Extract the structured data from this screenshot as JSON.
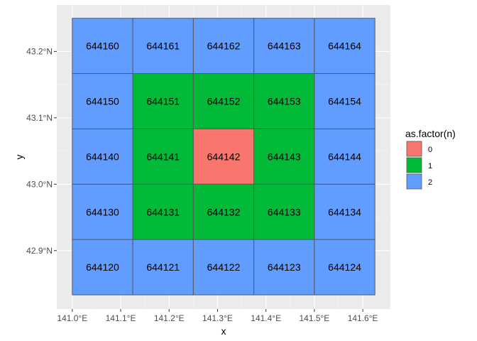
{
  "chart_data": {
    "type": "heatmap",
    "title": "",
    "xlabel": "x",
    "ylabel": "y",
    "xlim": [
      140.968,
      141.657
    ],
    "ylim": [
      42.812,
      43.27
    ],
    "grid": true,
    "x_ticks": [
      {
        "v": 141.0,
        "label": "141.0°E"
      },
      {
        "v": 141.1,
        "label": "141.1°E"
      },
      {
        "v": 141.2,
        "label": "141.2°E"
      },
      {
        "v": 141.3,
        "label": "141.3°E"
      },
      {
        "v": 141.4,
        "label": "141.4°E"
      },
      {
        "v": 141.5,
        "label": "141.5°E"
      },
      {
        "v": 141.6,
        "label": "141.6°E"
      }
    ],
    "y_ticks": [
      {
        "v": 42.9,
        "label": "42.9°N"
      },
      {
        "v": 43.0,
        "label": "43.0°N"
      },
      {
        "v": 43.1,
        "label": "43.1°N"
      },
      {
        "v": 43.2,
        "label": "43.2°N"
      }
    ],
    "tile_size": {
      "lon": 0.125,
      "lat": 0.08333
    },
    "tiles": [
      {
        "lon": 141.0625,
        "lat": 43.2083,
        "label": "644160",
        "n": 2
      },
      {
        "lon": 141.1875,
        "lat": 43.2083,
        "label": "644161",
        "n": 2
      },
      {
        "lon": 141.3125,
        "lat": 43.2083,
        "label": "644162",
        "n": 2
      },
      {
        "lon": 141.4375,
        "lat": 43.2083,
        "label": "644163",
        "n": 2
      },
      {
        "lon": 141.5625,
        "lat": 43.2083,
        "label": "644164",
        "n": 2
      },
      {
        "lon": 141.0625,
        "lat": 43.125,
        "label": "644150",
        "n": 2
      },
      {
        "lon": 141.1875,
        "lat": 43.125,
        "label": "644151",
        "n": 1
      },
      {
        "lon": 141.3125,
        "lat": 43.125,
        "label": "644152",
        "n": 1
      },
      {
        "lon": 141.4375,
        "lat": 43.125,
        "label": "644153",
        "n": 1
      },
      {
        "lon": 141.5625,
        "lat": 43.125,
        "label": "644154",
        "n": 2
      },
      {
        "lon": 141.0625,
        "lat": 43.0417,
        "label": "644140",
        "n": 2
      },
      {
        "lon": 141.1875,
        "lat": 43.0417,
        "label": "644141",
        "n": 1
      },
      {
        "lon": 141.3125,
        "lat": 43.0417,
        "label": "644142",
        "n": 0
      },
      {
        "lon": 141.4375,
        "lat": 43.0417,
        "label": "644143",
        "n": 1
      },
      {
        "lon": 141.5625,
        "lat": 43.0417,
        "label": "644144",
        "n": 2
      },
      {
        "lon": 141.0625,
        "lat": 42.9583,
        "label": "644130",
        "n": 2
      },
      {
        "lon": 141.1875,
        "lat": 42.9583,
        "label": "644131",
        "n": 1
      },
      {
        "lon": 141.3125,
        "lat": 42.9583,
        "label": "644132",
        "n": 1
      },
      {
        "lon": 141.4375,
        "lat": 42.9583,
        "label": "644133",
        "n": 1
      },
      {
        "lon": 141.5625,
        "lat": 42.9583,
        "label": "644134",
        "n": 2
      },
      {
        "lon": 141.0625,
        "lat": 42.875,
        "label": "644120",
        "n": 2
      },
      {
        "lon": 141.1875,
        "lat": 42.875,
        "label": "644121",
        "n": 2
      },
      {
        "lon": 141.3125,
        "lat": 42.875,
        "label": "644122",
        "n": 2
      },
      {
        "lon": 141.4375,
        "lat": 42.875,
        "label": "644123",
        "n": 2
      },
      {
        "lon": 141.5625,
        "lat": 42.875,
        "label": "644124",
        "n": 2
      }
    ],
    "legend": {
      "title": "as.factor(n)",
      "position": "right",
      "entries": [
        {
          "label": "0",
          "color": "#F8766D"
        },
        {
          "label": "1",
          "color": "#00BA38"
        },
        {
          "label": "2",
          "color": "#619CFF"
        }
      ]
    }
  }
}
